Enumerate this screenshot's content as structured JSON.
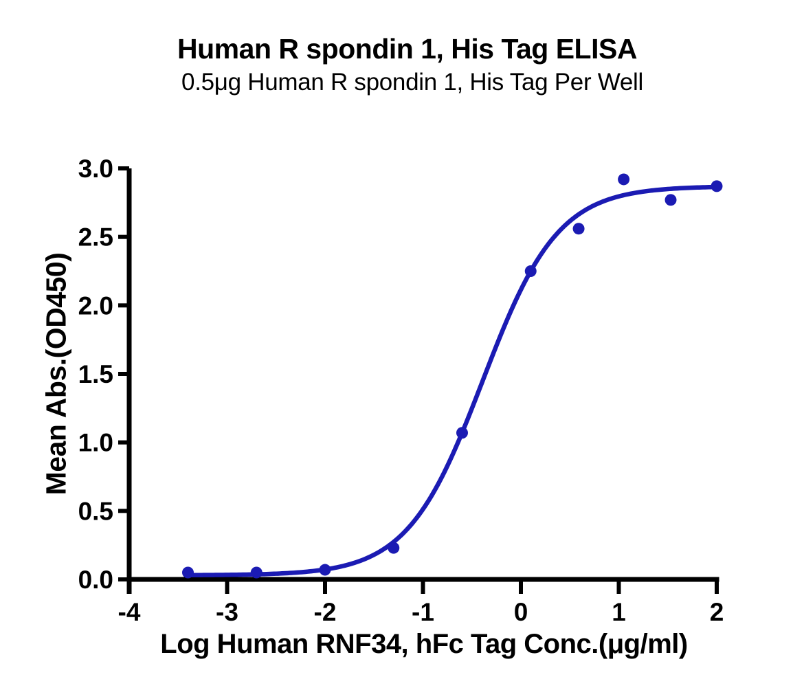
{
  "chart_data": {
    "type": "scatter",
    "title": "Human R spondin 1, His Tag ELISA",
    "subtitle": "0.5μg Human R spondin 1, His Tag Per Well",
    "xlabel": "Log Human RNF34, hFc Tag Conc.(μg/ml)",
    "ylabel": "Mean Abs.(OD450)",
    "xlim": [
      -4,
      2
    ],
    "ylim": [
      0,
      3
    ],
    "x_ticks": [
      -4,
      -3,
      -2,
      -1,
      0,
      1,
      2
    ],
    "x_tick_labels": [
      "-4",
      "-3",
      "-2",
      "-1",
      "0",
      "1",
      "2"
    ],
    "y_ticks": [
      0,
      0.5,
      1,
      1.5,
      2,
      2.5,
      3
    ],
    "y_tick_labels": [
      "0.0",
      "0.5",
      "1.0",
      "1.5",
      "2.0",
      "2.5",
      "3.0"
    ],
    "grid": false,
    "legend": "none",
    "colors": {
      "curve": "#1b1bb3",
      "axis": "#000000",
      "text": "#000000"
    },
    "series": [
      {
        "name": "Human RNF34, hFc Tag",
        "color": "#1b1bb3",
        "points": [
          {
            "x": -3.4,
            "y": 0.05
          },
          {
            "x": -2.7,
            "y": 0.05
          },
          {
            "x": -2.0,
            "y": 0.07
          },
          {
            "x": -1.3,
            "y": 0.23
          },
          {
            "x": -0.6,
            "y": 1.07
          },
          {
            "x": 0.1,
            "y": 2.25
          },
          {
            "x": 0.59,
            "y": 2.56
          },
          {
            "x": 1.05,
            "y": 2.92
          },
          {
            "x": 1.53,
            "y": 2.77
          },
          {
            "x": 2.0,
            "y": 2.87
          }
        ],
        "fit_4pl": {
          "bottom": 0.03,
          "top": 2.87,
          "log_ec50": -0.39,
          "hill": 1.13,
          "x_start": -3.4,
          "x_end": 2.0
        }
      }
    ]
  }
}
